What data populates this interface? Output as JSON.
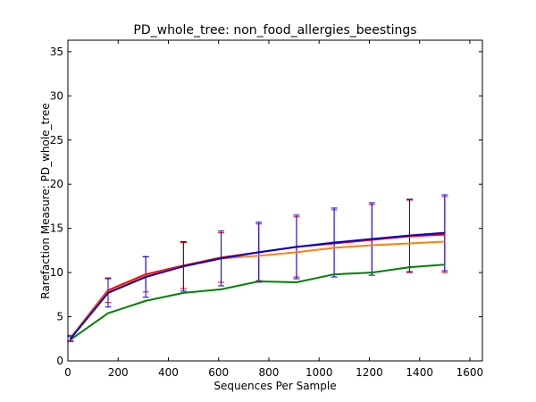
{
  "chart_data": {
    "type": "line",
    "title": "PD_whole_tree: non_food_allergies_beestings",
    "xlabel": "Sequences Per Sample",
    "ylabel": "Rarefaction Measure: PD_whole_tree",
    "xlim": [
      0,
      1650
    ],
    "ylim": [
      0,
      36.3
    ],
    "xticks": [
      "0",
      "200",
      "400",
      "600",
      "800",
      "1000",
      "1200",
      "1400",
      "1600"
    ],
    "yticks": [
      "0",
      "5",
      "10",
      "15",
      "20",
      "25",
      "30",
      "35"
    ],
    "grid": false,
    "x": [
      10,
      160,
      310,
      460,
      610,
      760,
      910,
      1060,
      1210,
      1360,
      1500
    ],
    "series": [
      {
        "color": "#ff0000",
        "values": [
          2.6,
          8.0,
          9.8,
          10.8,
          11.7,
          12.3,
          12.9,
          13.3,
          13.7,
          14.1,
          14.3
        ],
        "err": [
          0.3,
          1.4,
          2.0,
          2.6,
          2.8,
          3.2,
          3.4,
          3.8,
          4.0,
          4.1,
          4.3
        ],
        "errcolor": "#ff0000"
      },
      {
        "color": "#ff7f0e",
        "values": [
          2.6,
          7.8,
          9.6,
          10.7,
          11.6,
          11.9,
          12.3,
          12.8,
          13.1,
          13.3,
          13.5
        ],
        "err": [],
        "errcolor": "#ff7f0e"
      },
      {
        "color": "#008000",
        "values": [
          2.4,
          5.4,
          6.8,
          7.7,
          8.1,
          9.0,
          8.9,
          9.8,
          10.0,
          10.6,
          10.9
        ],
        "err": [],
        "errcolor": "#008000"
      },
      {
        "color": "#0000cc",
        "values": [
          2.5,
          7.7,
          9.5,
          10.7,
          11.6,
          12.3,
          12.9,
          13.4,
          13.8,
          14.2,
          14.5
        ],
        "err": [
          0.3,
          1.6,
          2.3,
          2.8,
          3.1,
          3.4,
          3.6,
          3.9,
          4.1,
          4.1,
          4.3
        ],
        "errcolor": "#0000ff"
      }
    ]
  }
}
